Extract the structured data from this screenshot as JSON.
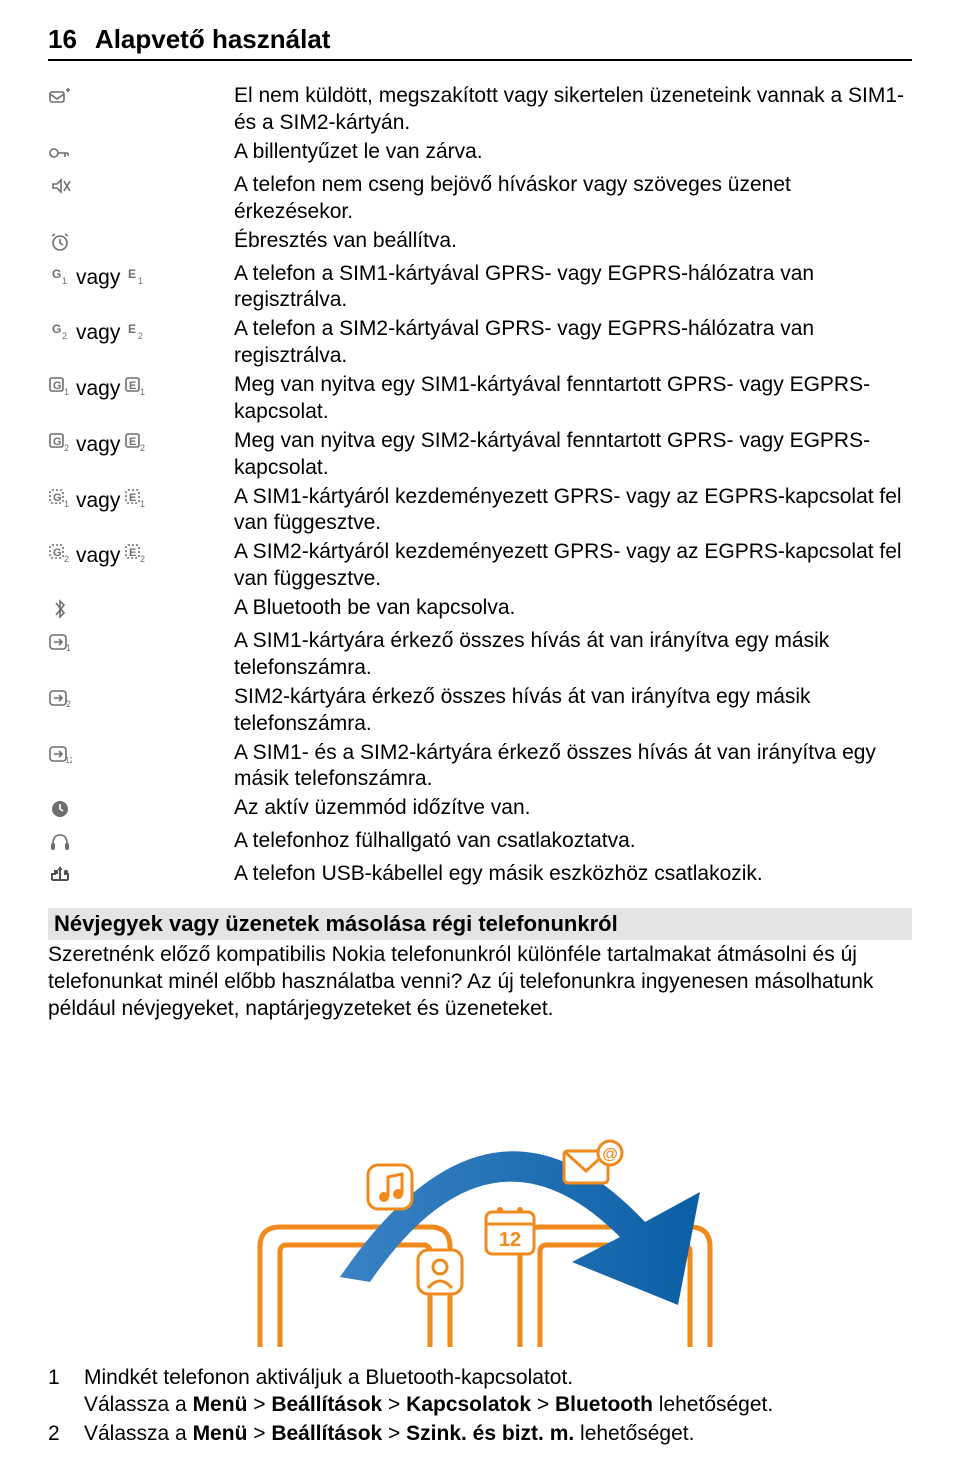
{
  "header": {
    "page_number": "16",
    "title": "Alapvető használat"
  },
  "colors": {
    "text": "#000000",
    "section_bg": "#e4e4e4",
    "illus_orange": "#f08a1d",
    "illus_blue": "#0b5fa5",
    "illus_blue_light": "#3a82c4",
    "illus_white": "#ffffff"
  },
  "rows": [
    {
      "icons": [
        "outbox"
      ],
      "text": "El nem küldött, megszakított vagy sikertelen üzeneteink vannak a SIM1- és a SIM2-kártyán."
    },
    {
      "icons": [
        "key"
      ],
      "text": "A billentyűzet le van zárva."
    },
    {
      "icons": [
        "silent"
      ],
      "text": "A telefon nem cseng bejövő híváskor vagy szöveges üzenet érkezésekor."
    },
    {
      "icons": [
        "alarm"
      ],
      "text": "Ébresztés van beállítva."
    },
    {
      "icons": [
        "g1",
        "vagy",
        "e1"
      ],
      "text": "A telefon a SIM1-kártyával GPRS- vagy EGPRS-hálózatra van regisztrálva."
    },
    {
      "icons": [
        "g2",
        "vagy",
        "e2"
      ],
      "text": "A telefon a SIM2-kártyával GPRS- vagy EGPRS-hálózatra van regisztrálva."
    },
    {
      "icons": [
        "gbox1",
        "vagy",
        "ebox1"
      ],
      "text": "Meg van nyitva egy SIM1-kártyával fenntartott GPRS- vagy EGPRS-kapcsolat."
    },
    {
      "icons": [
        "gbox2",
        "vagy",
        "ebox2"
      ],
      "text": "Meg van nyitva egy SIM2-kártyával fenntartott GPRS- vagy EGPRS-kapcsolat."
    },
    {
      "icons": [
        "gs1",
        "vagy",
        "es1"
      ],
      "text": "A SIM1-kártyáról kezdeményezett GPRS- vagy az EGPRS-kapcsolat fel van függesztve."
    },
    {
      "icons": [
        "gs2",
        "vagy",
        "es2"
      ],
      "text": "A SIM2-kártyáról kezdeményezett GPRS- vagy az EGPRS-kapcsolat fel van függesztve."
    },
    {
      "icons": [
        "bt"
      ],
      "text": "A Bluetooth be van kapcsolva."
    },
    {
      "icons": [
        "fwd1"
      ],
      "text": "A SIM1-kártyára érkező összes hívás át van irányítva egy másik telefonszámra."
    },
    {
      "icons": [
        "fwd2"
      ],
      "text": "SIM2-kártyára érkező összes hívás át van irányítva egy másik telefonszámra."
    },
    {
      "icons": [
        "fwd12"
      ],
      "text": "A SIM1- és a SIM2-kártyára érkező összes hívás át van irányítva egy másik telefonszámra."
    },
    {
      "icons": [
        "clock"
      ],
      "text": "Az aktív üzemmód időzítve van."
    },
    {
      "icons": [
        "headset"
      ],
      "text": "A telefonhoz fülhallgató van csatlakoztatva."
    },
    {
      "icons": [
        "usb"
      ],
      "text": "A telefon USB-kábellel egy másik eszközhöz csatlakozik."
    }
  ],
  "section": {
    "heading": "Névjegyek vagy üzenetek másolása régi telefonunkról",
    "body": "Szeretnénk előző kompatibilis Nokia telefonunkról különféle tartalmakat átmásolni és új telefonunkat minél előbb használatba venni? Az új telefonunkra ingyenesen másolhatunk például névjegyeket, naptárjegyzeteket és üzeneteket."
  },
  "illustration": {
    "calendar_label": "12"
  },
  "steps": [
    {
      "num": "1",
      "parts": [
        {
          "t": "Mindkét telefonon aktiváljuk a Bluetooth-kapcsolatot.",
          "b": false,
          "break_after": true
        },
        {
          "t": "Válassza a ",
          "b": false
        },
        {
          "t": "Menü",
          "b": true
        },
        {
          "t": " > ",
          "b": false
        },
        {
          "t": "Beállítások",
          "b": true
        },
        {
          "t": " > ",
          "b": false
        },
        {
          "t": "Kapcsolatok",
          "b": true
        },
        {
          "t": " > ",
          "b": false
        },
        {
          "t": "Bluetooth",
          "b": true
        },
        {
          "t": " lehetőséget.",
          "b": false
        }
      ]
    },
    {
      "num": "2",
      "parts": [
        {
          "t": "Válassza a ",
          "b": false
        },
        {
          "t": "Menü",
          "b": true
        },
        {
          "t": " > ",
          "b": false
        },
        {
          "t": "Beállítások",
          "b": true
        },
        {
          "t": " > ",
          "b": false
        },
        {
          "t": "Szink. és bizt. m.",
          "b": true
        },
        {
          "t": " lehetőséget.",
          "b": false
        }
      ]
    }
  ]
}
